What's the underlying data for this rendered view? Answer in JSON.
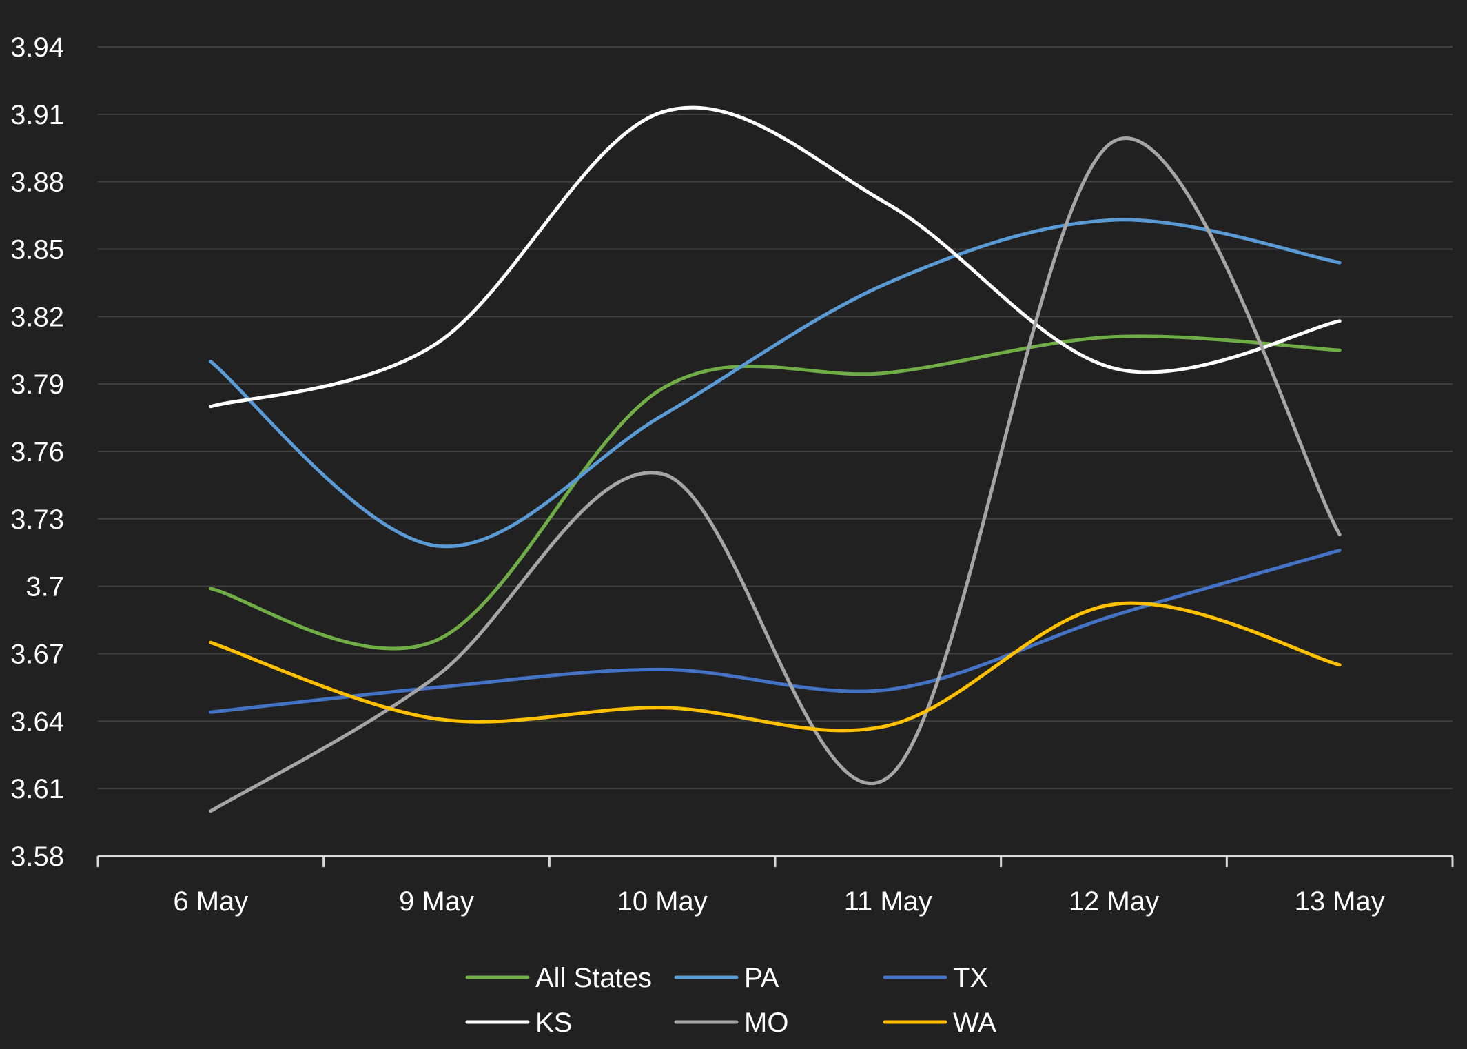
{
  "colors": {
    "background": "#212121",
    "gridline": "#404040",
    "axis": "#d9d9d9",
    "text": "#ffffff"
  },
  "chart_data": {
    "type": "line",
    "title": "",
    "xlabel": "",
    "ylabel": "",
    "smooth": true,
    "grid": true,
    "legend_position": "bottom",
    "categories": [
      "6 May",
      "9 May",
      "10 May",
      "11 May",
      "12 May",
      "13 May"
    ],
    "ylim": [
      3.58,
      3.94
    ],
    "yticks": [
      "3.58",
      "3.61",
      "3.64",
      "3.67",
      "3.7",
      "3.73",
      "3.76",
      "3.79",
      "3.82",
      "3.85",
      "3.88",
      "3.91",
      "3.94"
    ],
    "series": [
      {
        "name": "All States",
        "color": "#70ad47",
        "values": [
          3.699,
          3.676,
          3.788,
          3.795,
          3.811,
          3.805
        ]
      },
      {
        "name": "PA",
        "color": "#5b9bd5",
        "values": [
          3.8,
          3.718,
          3.776,
          3.835,
          3.863,
          3.844
        ]
      },
      {
        "name": "TX",
        "color": "#4472c4",
        "values": [
          3.644,
          3.655,
          3.663,
          3.654,
          3.687,
          3.716
        ]
      },
      {
        "name": "KS",
        "color": "#ffffff",
        "values": [
          3.78,
          3.808,
          3.911,
          3.87,
          3.797,
          3.818
        ]
      },
      {
        "name": "MO",
        "color": "#a5a5a5",
        "values": [
          3.6,
          3.66,
          3.75,
          3.615,
          3.898,
          3.723
        ]
      },
      {
        "name": "WA",
        "color": "#ffc000",
        "values": [
          3.675,
          3.641,
          3.646,
          3.638,
          3.692,
          3.665
        ]
      }
    ]
  }
}
